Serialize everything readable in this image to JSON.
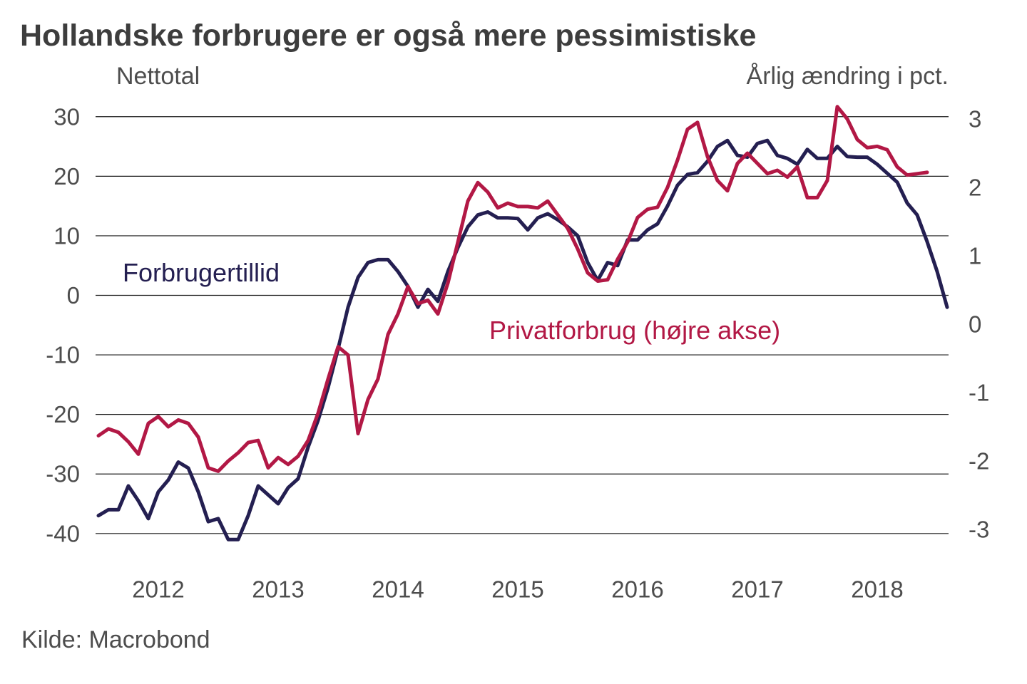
{
  "title": "Hollandske forbrugere er også mere pessimistiske",
  "source": "Kilde: Macrobond",
  "chart_data": {
    "type": "line",
    "title": "Hollandske forbrugere er også mere pessimistiske",
    "grid": "horizontal-only",
    "x_axis": {
      "labels": [
        "2012",
        "2013",
        "2014",
        "2015",
        "2016",
        "2017",
        "2018"
      ],
      "start": "2012-01",
      "step_months": 1
    },
    "left_axis": {
      "title": "Nettotal",
      "ticks": [
        30,
        20,
        10,
        0,
        -10,
        -20,
        -30,
        -40
      ],
      "range": [
        -44,
        33
      ]
    },
    "right_axis": {
      "title": "Årlig ændring i pct.",
      "ticks": [
        3,
        2,
        1,
        0,
        -1,
        -2,
        -3
      ],
      "range": [
        -3.3,
        3.3
      ]
    },
    "series": [
      {
        "name": "Forbrugertillid",
        "label": "Forbrugertillid",
        "axis": "left",
        "color": "#241f51",
        "start": "2012-01",
        "values": [
          -37,
          -36,
          -36,
          -32,
          -34.5,
          -37.5,
          -33,
          -31,
          -28,
          -29,
          -33,
          -38,
          -37.5,
          -41,
          -41,
          -37,
          -32,
          -33.5,
          -35,
          -32.3,
          -30.8,
          -25.5,
          -21,
          -15.5,
          -9,
          -2,
          3,
          5.5,
          6,
          6,
          4,
          1.5,
          -2,
          1,
          -1,
          4,
          8,
          11.5,
          13.5,
          14,
          13,
          13,
          12.9,
          11,
          13,
          13.7,
          12.7,
          11.5,
          10,
          5.5,
          2.5,
          5.5,
          5,
          9.3,
          9.3,
          11,
          12,
          15,
          18.5,
          20.3,
          20.6,
          22.5,
          25,
          26,
          23.5,
          23.2,
          25.5,
          26,
          23.5,
          23,
          22,
          24.5,
          23,
          23,
          25,
          23.3,
          23.2,
          23.2,
          22,
          20.5,
          19,
          15.5,
          13.5,
          9,
          4,
          -2
        ]
      },
      {
        "name": "Privatforbrug",
        "label": "Privatforbrug (højre akse)",
        "axis": "right",
        "color": "#b21845",
        "start": "2012-01",
        "values": [
          -1.63,
          -1.53,
          -1.58,
          -1.72,
          -1.9,
          -1.45,
          -1.35,
          -1.5,
          -1.4,
          -1.45,
          -1.65,
          -2.1,
          -2.15,
          -2.0,
          -1.88,
          -1.73,
          -1.7,
          -2.1,
          -1.95,
          -2.05,
          -1.93,
          -1.7,
          -1.3,
          -0.8,
          -0.33,
          -0.45,
          -1.6,
          -1.1,
          -0.8,
          -0.15,
          0.15,
          0.55,
          0.3,
          0.35,
          0.15,
          0.6,
          1.2,
          1.8,
          2.07,
          1.93,
          1.7,
          1.77,
          1.72,
          1.72,
          1.7,
          1.8,
          1.6,
          1.4,
          1.1,
          0.75,
          0.63,
          0.65,
          0.95,
          1.2,
          1.56,
          1.68,
          1.71,
          2.0,
          2.4,
          2.85,
          2.95,
          2.45,
          2.1,
          1.95,
          2.35,
          2.5,
          2.35,
          2.2,
          2.25,
          2.15,
          2.3,
          1.85,
          1.85,
          2.1,
          3.18,
          3.0,
          2.7,
          2.58,
          2.6,
          2.55,
          2.3,
          2.18,
          2.2,
          2.22
        ]
      }
    ],
    "colors": {
      "forbrugertillid": "#241f51",
      "privatforbrug": "#b21845",
      "gridline": "#1a1a1a",
      "text": "#4d4d4d",
      "title_text": "#3d3d3d"
    }
  }
}
